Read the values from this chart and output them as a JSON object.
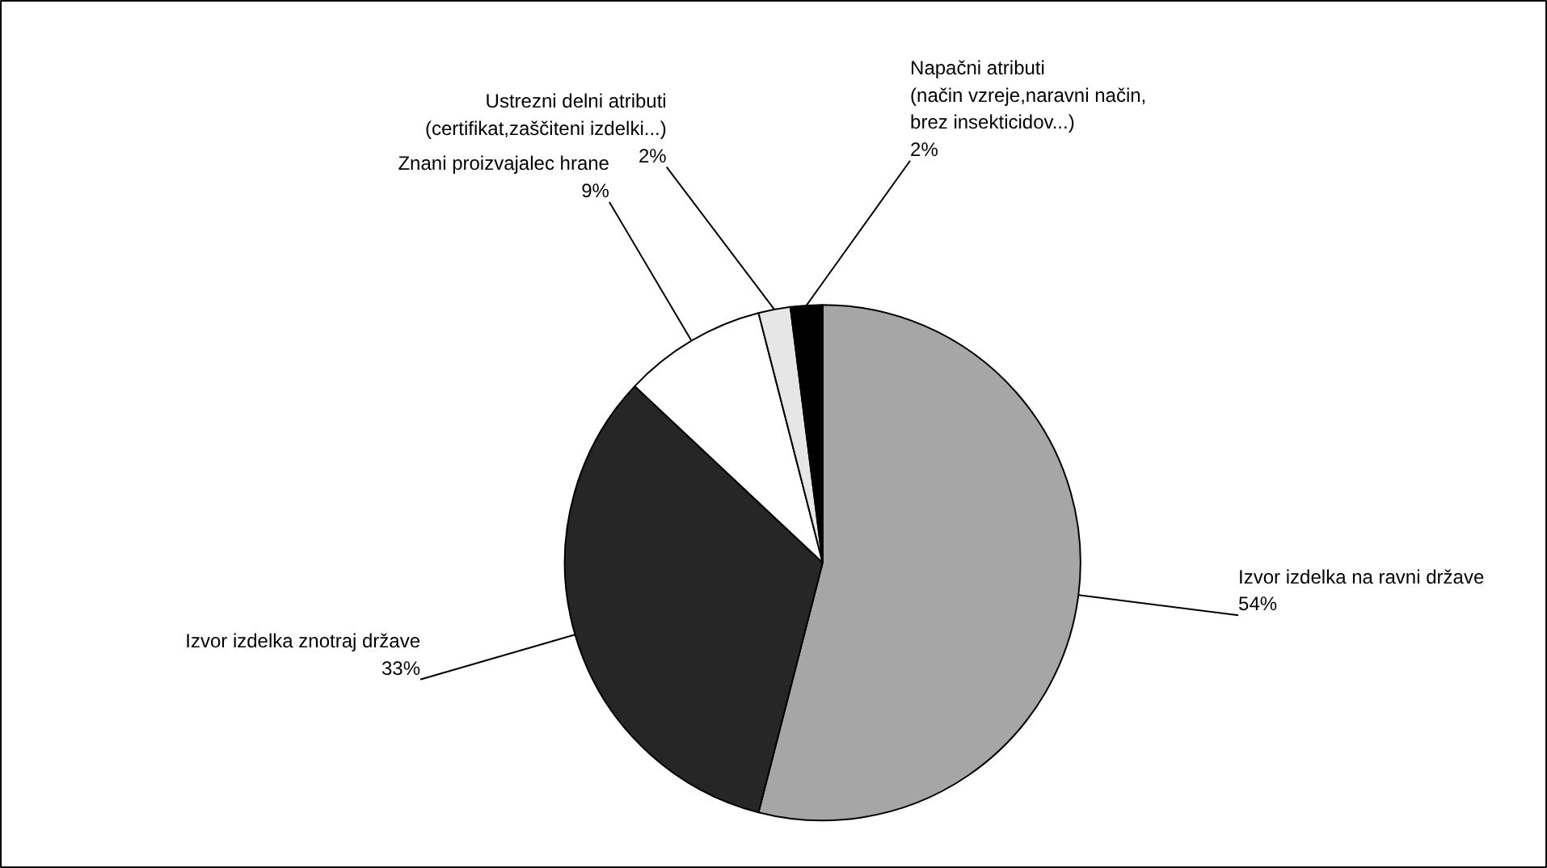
{
  "chart_data": {
    "type": "pie",
    "categories": [
      "Izvor izdelka na ravni države",
      "Izvor izdelka znotraj države",
      "Znani proizvajalec hrane",
      "Ustrezni delni atributi\n(certifikat,zaščiteni izdelki...)",
      "Napačni atributi\n(način vzreje,naravni način,\nbrez insekticidov...)"
    ],
    "values": [
      54,
      33,
      9,
      2,
      2
    ],
    "value_labels": [
      "54%",
      "33%",
      "9%",
      "2%",
      "2%"
    ],
    "colors": [
      "#a6a6a6",
      "#262626",
      "#ffffff",
      "#e6e6e6",
      "#000000"
    ]
  }
}
